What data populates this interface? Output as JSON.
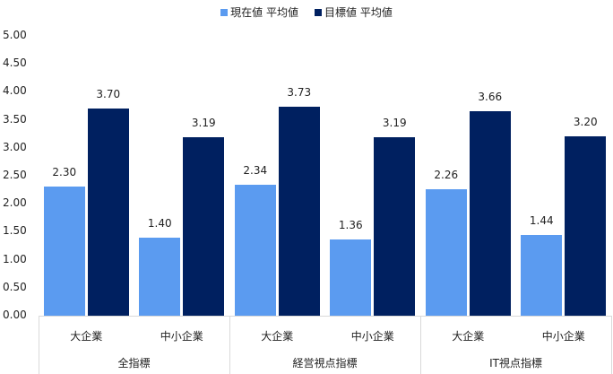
{
  "legend": {
    "items": [
      {
        "label": "現在値 平均値",
        "color": "#5B9BF0"
      },
      {
        "label": "目標値 平均値",
        "color": "#002060"
      }
    ]
  },
  "y_ticks": [
    "0.00",
    "0.50",
    "1.00",
    "1.50",
    "2.00",
    "2.50",
    "3.00",
    "3.50",
    "4.00",
    "4.50",
    "5.00"
  ],
  "chart_data": {
    "type": "bar",
    "title": "",
    "xlabel": "",
    "ylabel": "",
    "ylim": [
      0,
      5
    ],
    "y_tick_step": 0.5,
    "grid": false,
    "legend_position": "top",
    "categories": [
      {
        "group": "全指標",
        "sub": "大企業"
      },
      {
        "group": "全指標",
        "sub": "中小企業"
      },
      {
        "group": "経営視点指標",
        "sub": "大企業"
      },
      {
        "group": "経営視点指標",
        "sub": "中小企業"
      },
      {
        "group": "IT視点指標",
        "sub": "大企業"
      },
      {
        "group": "IT視点指標",
        "sub": "中小企業"
      }
    ],
    "groups": [
      "全指標",
      "経営視点指標",
      "IT視点指標"
    ],
    "subcategories": [
      "大企業",
      "中小企業"
    ],
    "series": [
      {
        "name": "現在値 平均値",
        "color": "#5B9BF0",
        "values": [
          2.3,
          1.4,
          2.34,
          1.36,
          2.26,
          1.44
        ],
        "labels": [
          "2.30",
          "1.40",
          "2.34",
          "1.36",
          "2.26",
          "1.44"
        ]
      },
      {
        "name": "目標値 平均値",
        "color": "#002060",
        "values": [
          3.7,
          3.19,
          3.73,
          3.19,
          3.66,
          3.2
        ],
        "labels": [
          "3.70",
          "3.19",
          "3.73",
          "3.19",
          "3.66",
          "3.20"
        ]
      }
    ]
  }
}
